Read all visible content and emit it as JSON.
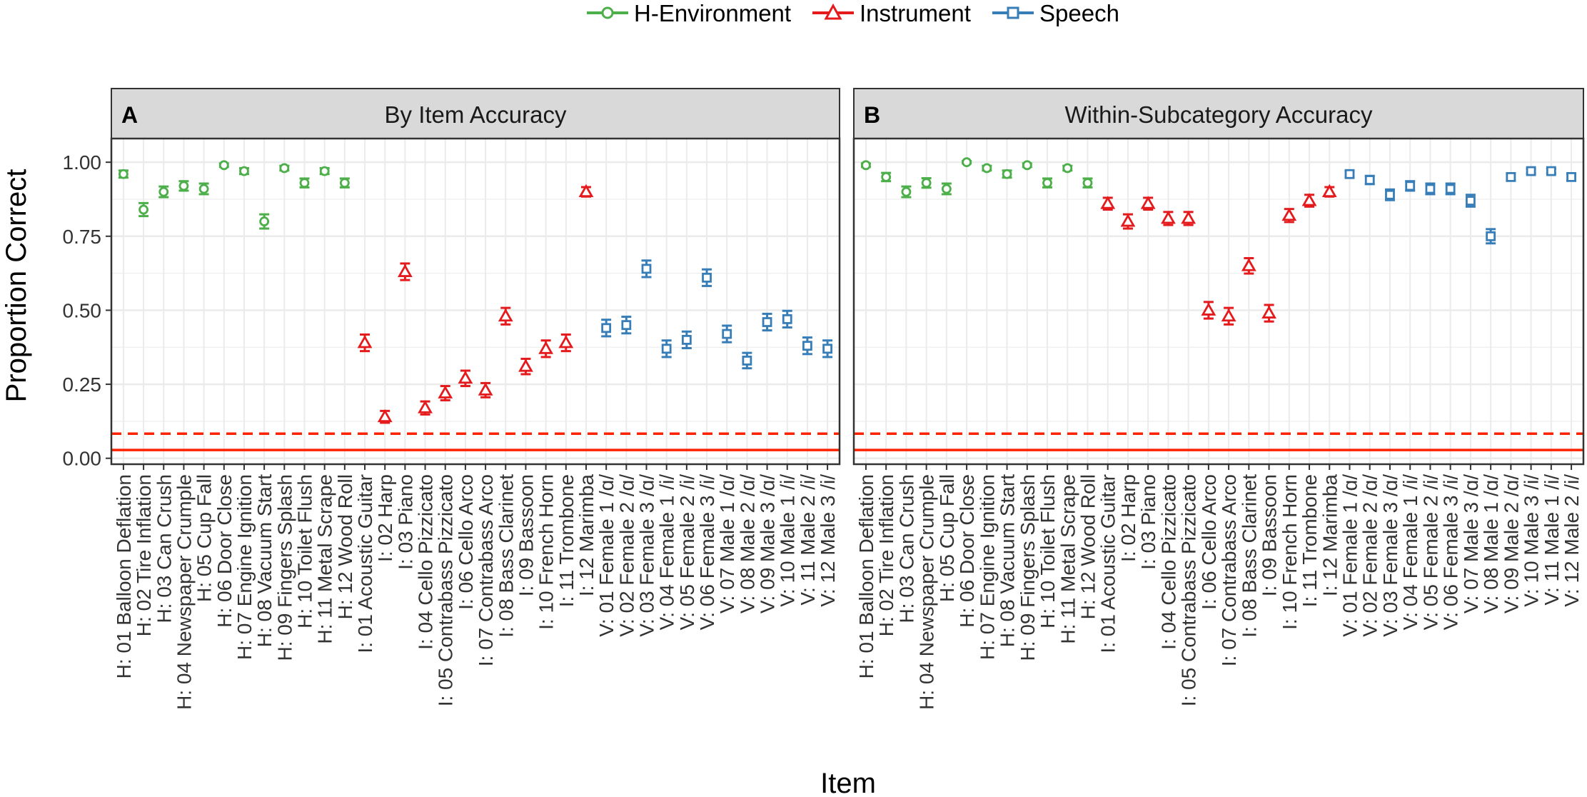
{
  "legend": [
    {
      "name": "H-Environment",
      "color": "#4daf4a",
      "shape": "circle"
    },
    {
      "name": "Instrument",
      "color": "#e41a1c",
      "shape": "triangle"
    },
    {
      "name": "Speech",
      "color": "#377eb8",
      "shape": "square"
    }
  ],
  "labels": {
    "ylabel": "Proportion Correct",
    "xlabel": "Item",
    "chance_solid": 0.028,
    "chance_dashed": 0.083,
    "chance_color": "#ff2200"
  },
  "chart_data": {
    "type": "scatter",
    "ylim": [
      -0.02,
      1.08
    ],
    "yticks": [
      "0.00",
      "0.25",
      "0.50",
      "0.75",
      "1.00"
    ],
    "items": [
      "H: 01 Balloon Deflation",
      "H: 02 Tire Inflation",
      "H: 03 Can Crush",
      "H: 04 Newspaper Crumple",
      "H: 05 Cup Fall",
      "H: 06 Door Close",
      "H: 07 Engine Ignition",
      "H: 08 Vacuum Start",
      "H: 09 Fingers Splash",
      "H: 10 Toilet Flush",
      "H: 11 Metal Scrape",
      "H: 12 Wood Roll",
      "I: 01 Acoustic Guitar",
      "I: 02 Harp",
      "I: 03 Piano",
      "I: 04 Cello Pizzicato",
      "I: 05 Contrabass Pizzicato",
      "I: 06 Cello Arco",
      "I: 07 Contrabass Arco",
      "I: 08 Bass Clarinet",
      "I: 09 Bassoon",
      "I: 10 French Horn",
      "I: 11 Trombone",
      "I: 12 Marimba",
      "V: 01 Female 1 /ɑ/",
      "V: 02 Female 2 /ɑ/",
      "V: 03 Female 3 /ɑ/",
      "V: 04 Female 1 /i/",
      "V: 05 Female 2 /i/",
      "V: 06 Female 3 /i/",
      "V: 07 Male 1 /ɑ/",
      "V: 08 Male 2 /ɑ/",
      "V: 09 Male 3 /ɑ/",
      "V: 10 Male 1 /i/",
      "V: 11 Male 2 /i/",
      "V: 12 Male 3 /i/"
    ],
    "groups": [
      "H",
      "H",
      "H",
      "H",
      "H",
      "H",
      "H",
      "H",
      "H",
      "H",
      "H",
      "H",
      "I",
      "I",
      "I",
      "I",
      "I",
      "I",
      "I",
      "I",
      "I",
      "I",
      "I",
      "I",
      "V",
      "V",
      "V",
      "V",
      "V",
      "V",
      "V",
      "V",
      "V",
      "V",
      "V",
      "V"
    ],
    "panels": [
      {
        "tag": "A",
        "title": "By Item Accuracy",
        "items": [
          "H: 01 Balloon Deflation",
          "H: 02 Tire Inflation",
          "H: 03 Can Crush",
          "H: 04 Newspaper Crumple",
          "H: 05 Cup Fall",
          "H: 06 Door Close",
          "H: 07 Engine Ignition",
          "H: 08 Vacuum Start",
          "H: 09 Fingers Splash",
          "H: 10 Toilet Flush",
          "H: 11 Metal Scrape",
          "H: 12 Wood Roll",
          "I: 01 Acoustic Guitar",
          "I: 02 Harp",
          "I: 03 Piano",
          "I: 04 Cello Pizzicato",
          "I: 05 Contrabass Pizzicato",
          "I: 06 Cello Arco",
          "I: 07 Contrabass Arco",
          "I: 08 Bass Clarinet",
          "I: 09 Bassoon",
          "I: 10 French Horn",
          "I: 11 Trombone",
          "I: 12 Marimba",
          "V: 01 Female 1 /ɑ/",
          "V: 02 Female 2 /ɑ/",
          "V: 03 Female 3 /ɑ/",
          "V: 04 Female 1 /i/",
          "V: 05 Female 2 /i/",
          "V: 06 Female 3 /i/",
          "V: 07 Male 1 /ɑ/",
          "V: 08 Male 2 /ɑ/",
          "V: 09 Male 3 /ɑ/",
          "V: 10 Male 1 /i/",
          "V: 11 Male 2 /i/",
          "V: 12 Male 3 /i/"
        ],
        "values": [
          0.96,
          0.84,
          0.9,
          0.92,
          0.91,
          0.99,
          0.97,
          0.8,
          0.98,
          0.93,
          0.97,
          0.93,
          0.39,
          0.14,
          0.63,
          0.17,
          0.22,
          0.27,
          0.23,
          0.48,
          0.31,
          0.37,
          0.39,
          0.9,
          0.44,
          0.45,
          0.64,
          0.37,
          0.4,
          0.61,
          0.42,
          0.33,
          0.46,
          0.47,
          0.38,
          0.37
        ],
        "errors": [
          0.012,
          0.022,
          0.018,
          0.016,
          0.018,
          0.006,
          0.01,
          0.024,
          0.008,
          0.015,
          0.01,
          0.015,
          0.028,
          0.02,
          0.028,
          0.022,
          0.024,
          0.026,
          0.024,
          0.028,
          0.026,
          0.028,
          0.028,
          0.016,
          0.028,
          0.028,
          0.028,
          0.028,
          0.028,
          0.028,
          0.028,
          0.026,
          0.028,
          0.028,
          0.028,
          0.028
        ]
      },
      {
        "tag": "B",
        "title": "Within-Subcategory Accuracy",
        "items": [
          "H: 01 Balloon Deflation",
          "H: 02 Tire Inflation",
          "H: 03 Can Crush",
          "H: 04 Newspaper Crumple",
          "H: 05 Cup Fall",
          "H: 06 Door Close",
          "H: 07 Engine Ignition",
          "H: 08 Vacuum Start",
          "H: 09 Fingers Splash",
          "H: 10 Toilet Flush",
          "H: 11 Metal Scrape",
          "H: 12 Wood Roll",
          "I: 01 Acoustic Guitar",
          "I: 02 Harp",
          "I: 03 Piano",
          "I: 04 Cello Pizzicato",
          "I: 05 Contrabass Pizzicato",
          "I: 06 Cello Arco",
          "I: 07 Contrabass Arco",
          "I: 08 Bass Clarinet",
          "I: 09 Bassoon",
          "I: 10 French Horn",
          "I: 11 Trombone",
          "I: 12 Marimba",
          "V: 01 Female 1 /ɑ/",
          "V: 02 Female 2 /ɑ/",
          "V: 03 Female 3 /ɑ/",
          "V: 04 Female 1 /i/",
          "V: 05 Female 2 /i/",
          "V: 06 Female 3 /i/",
          "V: 07 Male 3 /ɑ/",
          "V: 08 Male 1 /ɑ/",
          "V: 09 Male 2 /ɑ/",
          "V: 10 Male 3 /i/",
          "V: 11 Male 1 /i/",
          "V: 12 Male 2 /i/"
        ],
        "values": [
          0.99,
          0.95,
          0.9,
          0.93,
          0.91,
          1.0,
          0.98,
          0.96,
          0.99,
          0.93,
          0.98,
          0.93,
          0.86,
          0.8,
          0.86,
          0.81,
          0.81,
          0.5,
          0.48,
          0.65,
          0.49,
          0.82,
          0.87,
          0.9,
          0.96,
          0.94,
          0.89,
          0.92,
          0.91,
          0.91,
          0.87,
          0.75,
          0.95,
          0.97,
          0.97,
          0.95
        ],
        "errors": [
          0.006,
          0.014,
          0.018,
          0.016,
          0.018,
          0.004,
          0.008,
          0.012,
          0.006,
          0.015,
          0.008,
          0.015,
          0.02,
          0.024,
          0.02,
          0.022,
          0.022,
          0.028,
          0.028,
          0.026,
          0.028,
          0.022,
          0.02,
          0.016,
          0.01,
          0.014,
          0.018,
          0.016,
          0.018,
          0.018,
          0.02,
          0.024,
          0.012,
          0.008,
          0.008,
          0.012
        ]
      }
    ]
  }
}
